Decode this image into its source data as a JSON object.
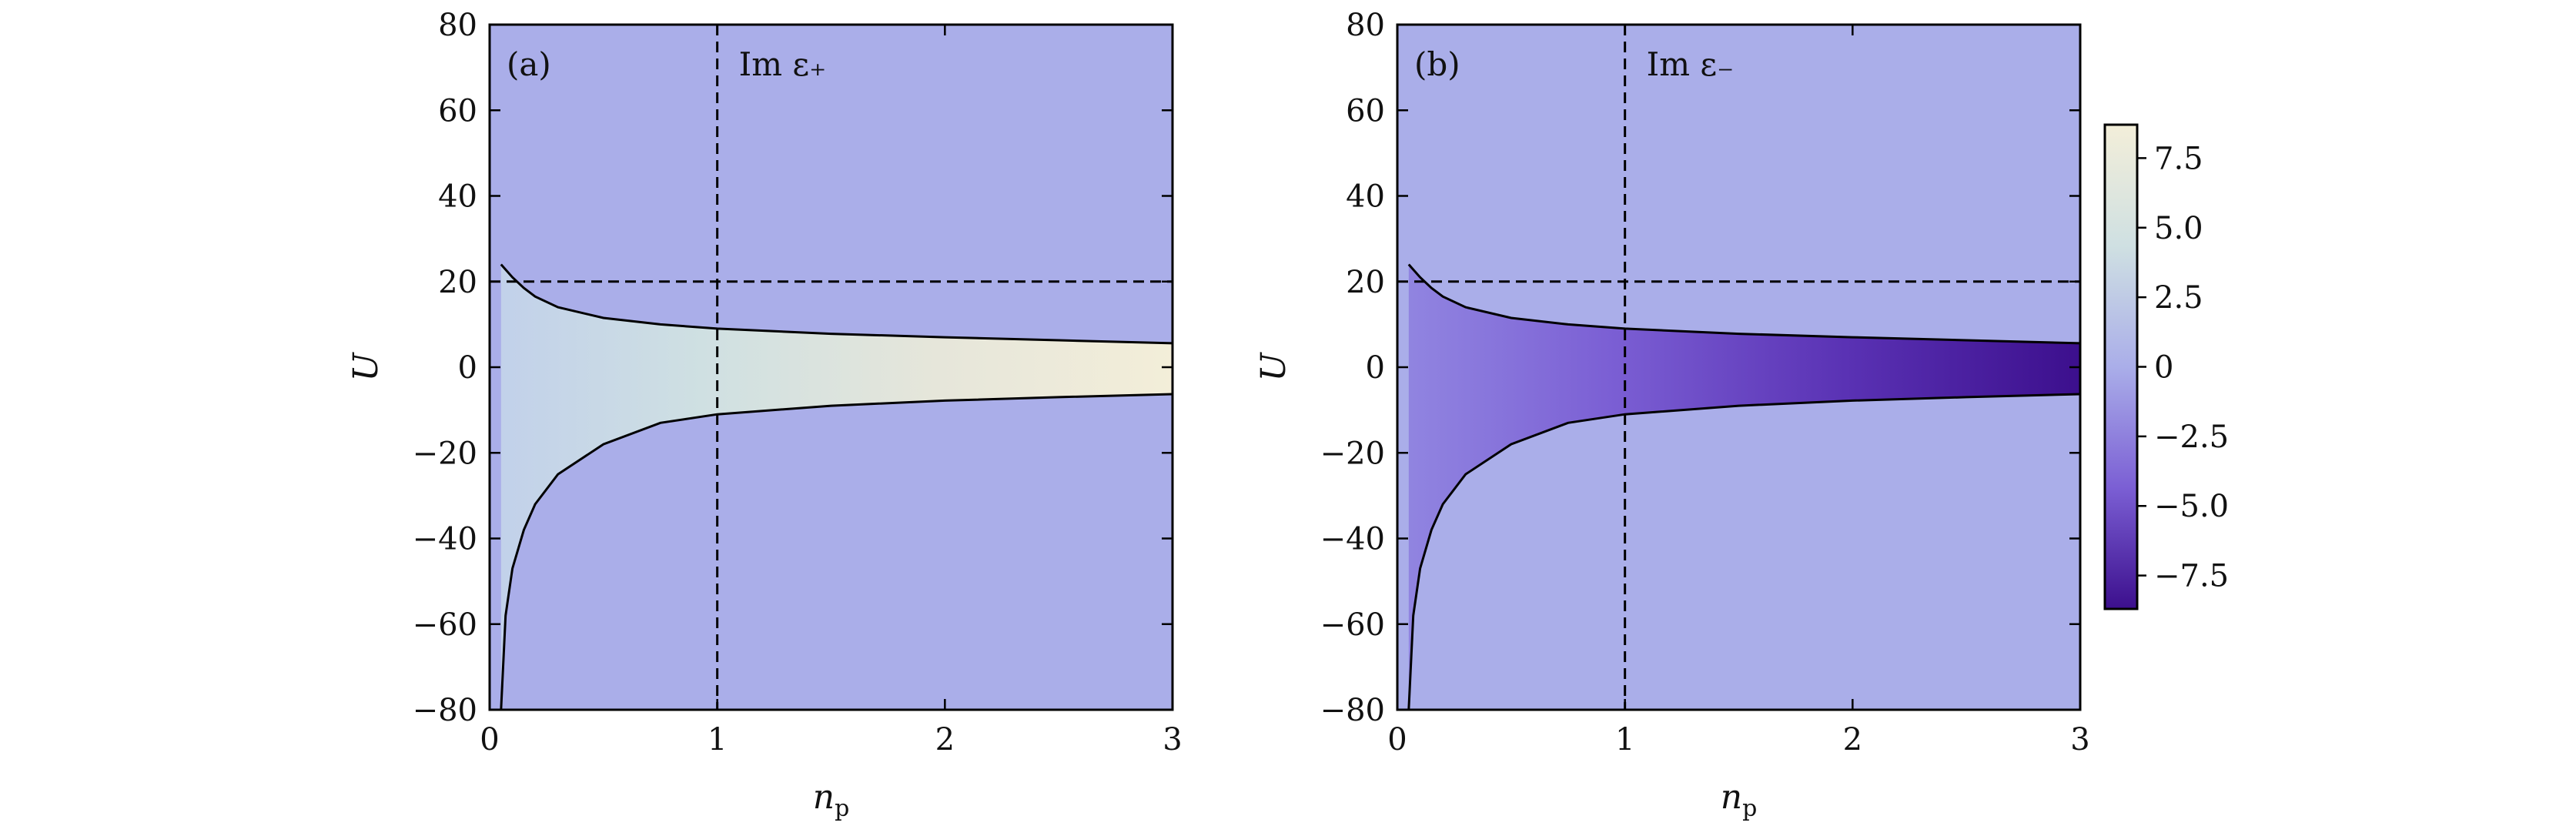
{
  "chart_data": [
    {
      "type": "heatmap",
      "panel_label": "(a)",
      "annotation": "Im ε₊",
      "xlabel": "n_p",
      "ylabel": "U",
      "xlim": [
        0,
        3
      ],
      "ylim": [
        -80,
        80
      ],
      "xticks": [
        "0",
        "1",
        "2",
        "3"
      ],
      "yticks": [
        "−80",
        "−60",
        "−40",
        "−20",
        "0",
        "20",
        "40",
        "60",
        "80"
      ],
      "grid": false,
      "reference_lines": {
        "vertical_x": 1,
        "horizontal_y": 20
      },
      "boundary_curves": {
        "upper": {
          "x": [
            0.05,
            0.1,
            0.15,
            0.2,
            0.3,
            0.5,
            0.75,
            1.0,
            1.5,
            2.0,
            2.5,
            3.0
          ],
          "y": [
            24,
            21,
            18.5,
            16.5,
            14,
            11.5,
            10,
            9,
            7.8,
            7,
            6.3,
            5.6
          ]
        },
        "lower": {
          "x": [
            0.05,
            0.07,
            0.1,
            0.15,
            0.2,
            0.3,
            0.5,
            0.75,
            1.0,
            1.5,
            2.0,
            2.5,
            3.0
          ],
          "y": [
            -80,
            -58,
            -47,
            -38,
            -32,
            -25,
            -18,
            -13,
            -11,
            -9,
            -7.8,
            -7,
            -6.3
          ]
        }
      },
      "value_sign": 1,
      "region_value_range": [
        0,
        8.5
      ]
    },
    {
      "type": "heatmap",
      "panel_label": "(b)",
      "annotation": "Im ε₋",
      "xlabel": "n_p",
      "ylabel": "U",
      "xlim": [
        0,
        3
      ],
      "ylim": [
        -80,
        80
      ],
      "xticks": [
        "0",
        "1",
        "2",
        "3"
      ],
      "yticks": [
        "−80",
        "−60",
        "−40",
        "−20",
        "0",
        "20",
        "40",
        "60",
        "80"
      ],
      "grid": false,
      "reference_lines": {
        "vertical_x": 1,
        "horizontal_y": 20
      },
      "boundary_curves": {
        "upper": {
          "x": [
            0.05,
            0.1,
            0.15,
            0.2,
            0.3,
            0.5,
            0.75,
            1.0,
            1.5,
            2.0,
            2.5,
            3.0
          ],
          "y": [
            24,
            21,
            18.5,
            16.5,
            14,
            11.5,
            10,
            9,
            7.8,
            7,
            6.3,
            5.6
          ]
        },
        "lower": {
          "x": [
            0.05,
            0.07,
            0.1,
            0.15,
            0.2,
            0.3,
            0.5,
            0.75,
            1.0,
            1.5,
            2.0,
            2.5,
            3.0
          ],
          "y": [
            -80,
            -58,
            -47,
            -38,
            -32,
            -25,
            -18,
            -13,
            -11,
            -9,
            -7.8,
            -7,
            -6.3
          ]
        }
      },
      "value_sign": -1,
      "region_value_range": [
        0,
        -8.5
      ]
    }
  ],
  "colorbar": {
    "range": [
      -8.7,
      8.7
    ],
    "ticks": [
      {
        "value": 7.5,
        "label": "7.5"
      },
      {
        "value": 5.0,
        "label": "5.0"
      },
      {
        "value": 2.5,
        "label": "2.5"
      },
      {
        "value": 0,
        "label": "0"
      },
      {
        "value": -2.5,
        "label": "−2.5"
      },
      {
        "value": -5.0,
        "label": "−5.0"
      },
      {
        "value": -7.5,
        "label": "−7.5"
      }
    ],
    "colors": {
      "max": "#f3eed9",
      "mid_high": "#cfe0e2",
      "zero": "#aaaee9",
      "mid_low": "#7b5fd4",
      "min": "#3c0f8d"
    }
  }
}
